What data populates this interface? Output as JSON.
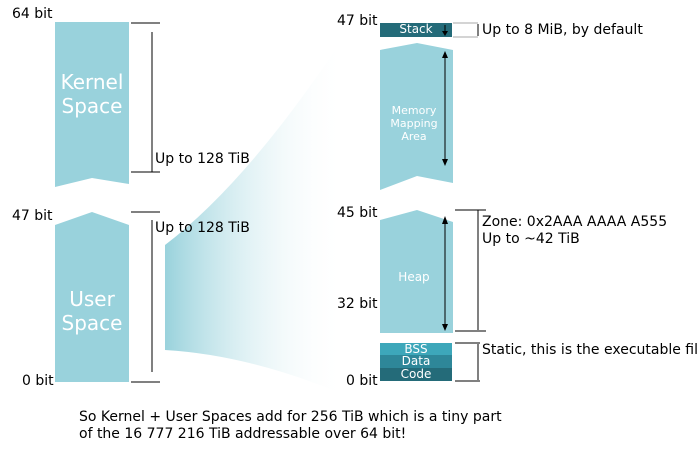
{
  "colors": {
    "light_block": "#99d2dc",
    "dark_block": "#246b79",
    "bss_block": "#3da7ba",
    "line": "#000000",
    "gradient_from": "#99d2dc",
    "gradient_to": "#ffffff"
  },
  "left_column": {
    "kernel": {
      "line1": "Kernel",
      "line2": "Space",
      "top_bit": "64 bit",
      "size_note": "Up to 128 TiB"
    },
    "user": {
      "line1": "User",
      "line2": "Space",
      "top_bit": "47 bit",
      "bottom_bit": "0 bit",
      "size_note": "Up to 128 TiB"
    }
  },
  "right_column": {
    "top_bit": "47 bit",
    "stack": {
      "label": "Stack",
      "note": "Up to 8 MiB, by default"
    },
    "mmap": {
      "line1": "Memory",
      "line2": "Mapping",
      "line3": "Area"
    },
    "heap": {
      "label": "Heap",
      "top_bit": "45 bit",
      "mid_bit": "32 bit",
      "zone_note": "Zone: 0x2AAA AAAA A555",
      "size_note": "Up to ~42 TiB"
    },
    "static": {
      "bss": "BSS",
      "data": "Data",
      "code": "Code",
      "note": "Static, this is the executable file",
      "bottom_bit": "0 bit"
    }
  },
  "caption": {
    "line1": "So Kernel + User Spaces add for 256 TiB which is a tiny part",
    "line2": "of the 16 777 216 TiB addressable over 64 bit!"
  }
}
